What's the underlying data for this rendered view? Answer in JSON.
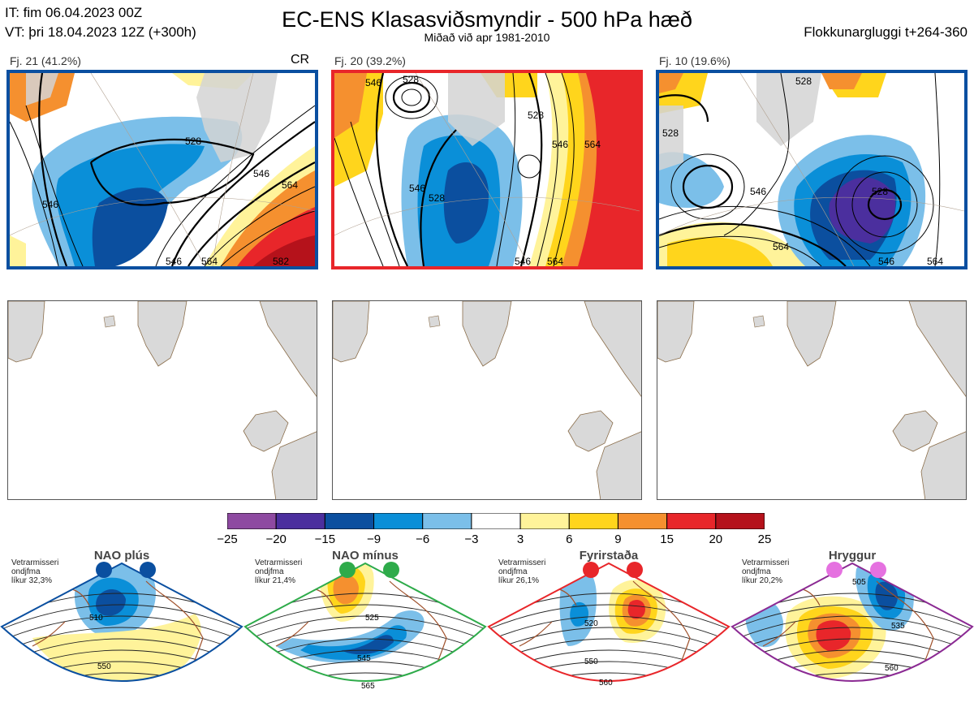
{
  "header": {
    "it": "IT: fim 06.04.2023 00Z",
    "vt": "VT: þri 18.04.2023 12Z  (+300h)",
    "title": "EC-ENS Klasasviðsmyndir - 500 hPa hæð",
    "subtitle": "Miðað við apr 1981-2010",
    "window": "Flokkunargluggi t+264-360"
  },
  "clusters": [
    {
      "label": "Fj. 21 (41.2%)",
      "tag": "CR",
      "frame_color": "#0a4fa0",
      "contours": [
        "546",
        "528",
        "546",
        "564",
        "546",
        "564",
        "582"
      ]
    },
    {
      "label": "Fj. 20 (39.2%)",
      "tag": "",
      "frame_color": "#e8262a",
      "contours": [
        "546",
        "528",
        "528",
        "546",
        "564",
        "546",
        "528",
        "546",
        "564"
      ]
    },
    {
      "label": "Fj. 10 (19.6%)",
      "tag": "",
      "frame_color": "#0a4fa0",
      "contours": [
        "528",
        "528",
        "546",
        "564",
        "528",
        "546",
        "564"
      ]
    }
  ],
  "colorbar": {
    "colors": [
      "#8e4aa1",
      "#4b2f9e",
      "#0b4f9f",
      "#0a8fd8",
      "#7bbfe9",
      "#ffffff",
      "#fff39a",
      "#ffd51c",
      "#f5902f",
      "#e8262a",
      "#b5121b"
    ],
    "ticks": [
      "−25",
      "−20",
      "−15",
      "−9",
      "−6",
      "−3",
      "3",
      "6",
      "9",
      "15",
      "20",
      "25"
    ]
  },
  "regimes": [
    {
      "name": "NAO plús",
      "note": "Vetrarmisseri\nondjfma\nlíkur 32,3%",
      "dot_color": "#0a4fa0",
      "frame_color": "#0a4fa0",
      "contours": [
        "510",
        "550"
      ]
    },
    {
      "name": "NAO mínus",
      "note": "Vetrarmisseri\nondjfma\nlíkur 21,4%",
      "dot_color": "#2eab4a",
      "frame_color": "#2eab4a",
      "contours": [
        "525",
        "545",
        "565"
      ]
    },
    {
      "name": "Fyrirstaða",
      "note": "Vetrarmisseri\nondjfma\nlíkur 26,1%",
      "dot_color": "#e8262a",
      "frame_color": "#e8262a",
      "contours": [
        "520",
        "550",
        "560"
      ]
    },
    {
      "name": "Hryggur",
      "note": "Vetrarmisseri\nondjfma\nlíkur 20,2%",
      "dot_color": "#e571e0",
      "frame_color": "#8b2a93",
      "contours": [
        "505",
        "535",
        "560"
      ]
    }
  ]
}
